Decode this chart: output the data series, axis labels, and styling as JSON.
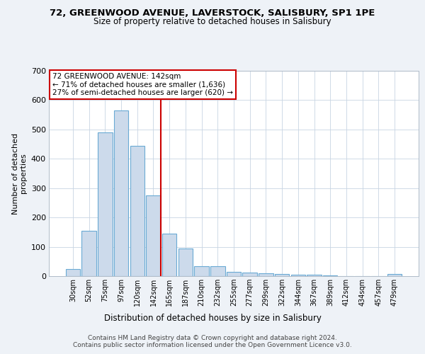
{
  "title1": "72, GREENWOOD AVENUE, LAVERSTOCK, SALISBURY, SP1 1PE",
  "title2": "Size of property relative to detached houses in Salisbury",
  "xlabel": "Distribution of detached houses by size in Salisbury",
  "ylabel": "Number of detached\nproperties",
  "categories": [
    "30sqm",
    "52sqm",
    "75sqm",
    "97sqm",
    "120sqm",
    "142sqm",
    "165sqm",
    "187sqm",
    "210sqm",
    "232sqm",
    "255sqm",
    "277sqm",
    "299sqm",
    "322sqm",
    "344sqm",
    "367sqm",
    "389sqm",
    "412sqm",
    "434sqm",
    "457sqm",
    "479sqm"
  ],
  "values": [
    25,
    155,
    490,
    565,
    445,
    275,
    145,
    95,
    35,
    35,
    15,
    12,
    10,
    7,
    5,
    4,
    2,
    1,
    1,
    1,
    8
  ],
  "bar_color": "#ccdaeb",
  "bar_edge_color": "#6aaad4",
  "red_line_index": 5,
  "annotation_text": "72 GREENWOOD AVENUE: 142sqm\n← 71% of detached houses are smaller (1,636)\n27% of semi-detached houses are larger (620) →",
  "annotation_box_color": "#ffffff",
  "annotation_box_edge_color": "#cc0000",
  "red_line_color": "#cc0000",
  "ylim": [
    0,
    700
  ],
  "yticks": [
    0,
    100,
    200,
    300,
    400,
    500,
    600,
    700
  ],
  "footer1": "Contains HM Land Registry data © Crown copyright and database right 2024.",
  "footer2": "Contains public sector information licensed under the Open Government Licence v3.0.",
  "bg_color": "#eef2f7",
  "plot_bg_color": "#ffffff",
  "grid_color": "#c8d4e3"
}
